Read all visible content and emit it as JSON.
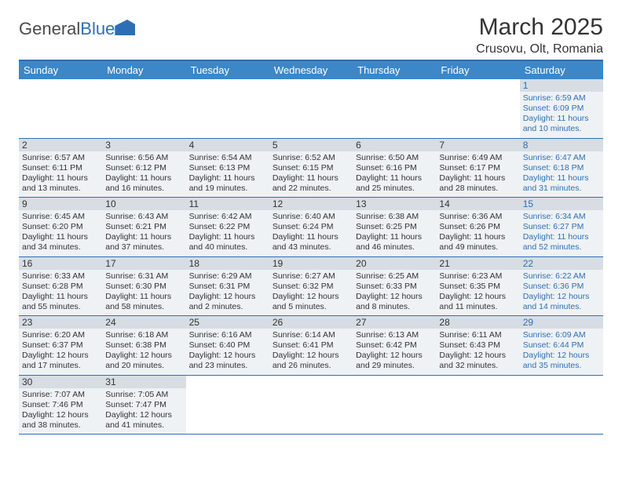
{
  "logo": {
    "part1": "General",
    "part2": "Blue"
  },
  "title": "March 2025",
  "location": "Crusovu, Olt, Romania",
  "colors": {
    "header_bg": "#3b87c8",
    "border": "#2d6fb6",
    "cell_bg": "#eef2f5",
    "daynum_bg": "#d7dde3",
    "text": "#333333",
    "saturday_text": "#2d6fb6"
  },
  "days_of_week": [
    "Sunday",
    "Monday",
    "Tuesday",
    "Wednesday",
    "Thursday",
    "Friday",
    "Saturday"
  ],
  "weeks": [
    [
      null,
      null,
      null,
      null,
      null,
      null,
      {
        "n": "1",
        "sr": "Sunrise: 6:59 AM",
        "ss": "Sunset: 6:09 PM",
        "dl": "Daylight: 11 hours and 10 minutes."
      }
    ],
    [
      {
        "n": "2",
        "sr": "Sunrise: 6:57 AM",
        "ss": "Sunset: 6:11 PM",
        "dl": "Daylight: 11 hours and 13 minutes."
      },
      {
        "n": "3",
        "sr": "Sunrise: 6:56 AM",
        "ss": "Sunset: 6:12 PM",
        "dl": "Daylight: 11 hours and 16 minutes."
      },
      {
        "n": "4",
        "sr": "Sunrise: 6:54 AM",
        "ss": "Sunset: 6:13 PM",
        "dl": "Daylight: 11 hours and 19 minutes."
      },
      {
        "n": "5",
        "sr": "Sunrise: 6:52 AM",
        "ss": "Sunset: 6:15 PM",
        "dl": "Daylight: 11 hours and 22 minutes."
      },
      {
        "n": "6",
        "sr": "Sunrise: 6:50 AM",
        "ss": "Sunset: 6:16 PM",
        "dl": "Daylight: 11 hours and 25 minutes."
      },
      {
        "n": "7",
        "sr": "Sunrise: 6:49 AM",
        "ss": "Sunset: 6:17 PM",
        "dl": "Daylight: 11 hours and 28 minutes."
      },
      {
        "n": "8",
        "sr": "Sunrise: 6:47 AM",
        "ss": "Sunset: 6:18 PM",
        "dl": "Daylight: 11 hours and 31 minutes."
      }
    ],
    [
      {
        "n": "9",
        "sr": "Sunrise: 6:45 AM",
        "ss": "Sunset: 6:20 PM",
        "dl": "Daylight: 11 hours and 34 minutes."
      },
      {
        "n": "10",
        "sr": "Sunrise: 6:43 AM",
        "ss": "Sunset: 6:21 PM",
        "dl": "Daylight: 11 hours and 37 minutes."
      },
      {
        "n": "11",
        "sr": "Sunrise: 6:42 AM",
        "ss": "Sunset: 6:22 PM",
        "dl": "Daylight: 11 hours and 40 minutes."
      },
      {
        "n": "12",
        "sr": "Sunrise: 6:40 AM",
        "ss": "Sunset: 6:24 PM",
        "dl": "Daylight: 11 hours and 43 minutes."
      },
      {
        "n": "13",
        "sr": "Sunrise: 6:38 AM",
        "ss": "Sunset: 6:25 PM",
        "dl": "Daylight: 11 hours and 46 minutes."
      },
      {
        "n": "14",
        "sr": "Sunrise: 6:36 AM",
        "ss": "Sunset: 6:26 PM",
        "dl": "Daylight: 11 hours and 49 minutes."
      },
      {
        "n": "15",
        "sr": "Sunrise: 6:34 AM",
        "ss": "Sunset: 6:27 PM",
        "dl": "Daylight: 11 hours and 52 minutes."
      }
    ],
    [
      {
        "n": "16",
        "sr": "Sunrise: 6:33 AM",
        "ss": "Sunset: 6:28 PM",
        "dl": "Daylight: 11 hours and 55 minutes."
      },
      {
        "n": "17",
        "sr": "Sunrise: 6:31 AM",
        "ss": "Sunset: 6:30 PM",
        "dl": "Daylight: 11 hours and 58 minutes."
      },
      {
        "n": "18",
        "sr": "Sunrise: 6:29 AM",
        "ss": "Sunset: 6:31 PM",
        "dl": "Daylight: 12 hours and 2 minutes."
      },
      {
        "n": "19",
        "sr": "Sunrise: 6:27 AM",
        "ss": "Sunset: 6:32 PM",
        "dl": "Daylight: 12 hours and 5 minutes."
      },
      {
        "n": "20",
        "sr": "Sunrise: 6:25 AM",
        "ss": "Sunset: 6:33 PM",
        "dl": "Daylight: 12 hours and 8 minutes."
      },
      {
        "n": "21",
        "sr": "Sunrise: 6:23 AM",
        "ss": "Sunset: 6:35 PM",
        "dl": "Daylight: 12 hours and 11 minutes."
      },
      {
        "n": "22",
        "sr": "Sunrise: 6:22 AM",
        "ss": "Sunset: 6:36 PM",
        "dl": "Daylight: 12 hours and 14 minutes."
      }
    ],
    [
      {
        "n": "23",
        "sr": "Sunrise: 6:20 AM",
        "ss": "Sunset: 6:37 PM",
        "dl": "Daylight: 12 hours and 17 minutes."
      },
      {
        "n": "24",
        "sr": "Sunrise: 6:18 AM",
        "ss": "Sunset: 6:38 PM",
        "dl": "Daylight: 12 hours and 20 minutes."
      },
      {
        "n": "25",
        "sr": "Sunrise: 6:16 AM",
        "ss": "Sunset: 6:40 PM",
        "dl": "Daylight: 12 hours and 23 minutes."
      },
      {
        "n": "26",
        "sr": "Sunrise: 6:14 AM",
        "ss": "Sunset: 6:41 PM",
        "dl": "Daylight: 12 hours and 26 minutes."
      },
      {
        "n": "27",
        "sr": "Sunrise: 6:13 AM",
        "ss": "Sunset: 6:42 PM",
        "dl": "Daylight: 12 hours and 29 minutes."
      },
      {
        "n": "28",
        "sr": "Sunrise: 6:11 AM",
        "ss": "Sunset: 6:43 PM",
        "dl": "Daylight: 12 hours and 32 minutes."
      },
      {
        "n": "29",
        "sr": "Sunrise: 6:09 AM",
        "ss": "Sunset: 6:44 PM",
        "dl": "Daylight: 12 hours and 35 minutes."
      }
    ],
    [
      {
        "n": "30",
        "sr": "Sunrise: 7:07 AM",
        "ss": "Sunset: 7:46 PM",
        "dl": "Daylight: 12 hours and 38 minutes."
      },
      {
        "n": "31",
        "sr": "Sunrise: 7:05 AM",
        "ss": "Sunset: 7:47 PM",
        "dl": "Daylight: 12 hours and 41 minutes."
      },
      null,
      null,
      null,
      null,
      null
    ]
  ]
}
